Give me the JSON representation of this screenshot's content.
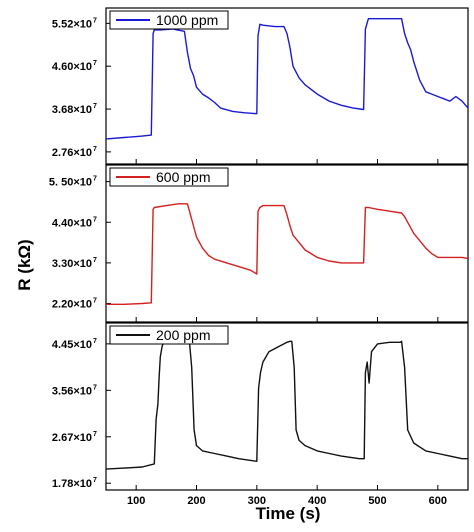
{
  "chart_data": {
    "type": "line",
    "xlabel": "Time (s)",
    "ylabel": "R (kΩ)",
    "xlim": [
      50,
      650
    ],
    "x_ticks": [
      100,
      200,
      300,
      400,
      500,
      600
    ],
    "panels": [
      {
        "legend": "1000 ppm",
        "color": "#1a1ad6",
        "ylim": [
          25000000.0,
          58500000.0
        ],
        "y_ticks": [
          27600000.0,
          36800000.0,
          46000000.0,
          55200000.0
        ],
        "y_tick_labels": [
          "2.76×10",
          "3.68×10",
          "4.60×10",
          "5.52×10"
        ],
        "y_tick_exp": "7",
        "series": [
          {
            "x": [
              50,
              80,
              110,
              125,
              128,
              130,
              140,
              160,
              180,
              185,
              190,
              195,
              200,
              210,
              220,
              230,
              240,
              260,
              280,
              300,
              302,
              305,
              310,
              330,
              345,
              350,
              355,
              360,
              370,
              380,
              400,
              420,
              440,
              460,
              477,
              480,
              485,
              500,
              520,
              540,
              545,
              550,
              555,
              560,
              570,
              580,
              590,
              600,
              610,
              620,
              630,
              640,
              650
            ],
            "y": [
              30400000.0,
              30700000.0,
              31000000.0,
              31200000.0,
              53000000.0,
              53800000.0,
              53800000.0,
              54000000.0,
              53500000.0,
              49000000.0,
              45500000.0,
              44000000.0,
              41500000.0,
              40000000.0,
              39200000.0,
              38200000.0,
              37000000.0,
              36300000.0,
              36000000.0,
              35800000.0,
              52500000.0,
              55000000.0,
              54800000.0,
              54500000.0,
              54500000.0,
              53000000.0,
              50000000.0,
              46000000.0,
              43500000.0,
              42000000.0,
              40000000.0,
              38500000.0,
              37600000.0,
              37000000.0,
              36700000.0,
              54000000.0,
              56200000.0,
              56200000.0,
              56200000.0,
              56200000.0,
              53000000.0,
              51000000.0,
              49500000.0,
              47000000.0,
              43000000.0,
              40500000.0,
              40000000.0,
              39500000.0,
              39000000.0,
              38500000.0,
              39500000.0,
              38500000.0,
              37000000.0
            ]
          }
        ]
      },
      {
        "legend": "600 ppm",
        "color": "#d42020",
        "ylim": [
          17000000.0,
          59500000.0
        ],
        "y_ticks": [
          22000000.0,
          33000000.0,
          44000000.0,
          55000000.0
        ],
        "y_tick_labels": [
          "2.20×10",
          "3.30×10",
          "4.40×10",
          "5. 50×10"
        ],
        "y_tick_exp": "7",
        "series": [
          {
            "x": [
              50,
              80,
              110,
              125,
              128,
              130,
              150,
              170,
              185,
              190,
              195,
              200,
              210,
              220,
              230,
              250,
              270,
              290,
              300,
              302,
              305,
              310,
              330,
              345,
              350,
              355,
              360,
              370,
              380,
              400,
              420,
              440,
              460,
              477,
              480,
              485,
              500,
              520,
              540,
              545,
              550,
              555,
              560,
              570,
              580,
              590,
              600,
              620,
              640,
              650
            ],
            "y": [
              21800000.0,
              21800000.0,
              22000000.0,
              22200000.0,
              47500000.0,
              48000000.0,
              48500000.0,
              49000000.0,
              49000000.0,
              46000000.0,
              43000000.0,
              40000000.0,
              37000000.0,
              35000000.0,
              34000000.0,
              33000000.0,
              32000000.0,
              31000000.0,
              30000000.0,
              47000000.0,
              48000000.0,
              48500000.0,
              48500000.0,
              48500000.0,
              46000000.0,
              43000000.0,
              40500000.0,
              38500000.0,
              36500000.0,
              34500000.0,
              33500000.0,
              33000000.0,
              33000000.0,
              33000000.0,
              48000000.0,
              48000000.0,
              47500000.0,
              47000000.0,
              46500000.0,
              45500000.0,
              44000000.0,
              42500000.0,
              41000000.0,
              39000000.0,
              37000000.0,
              35500000.0,
              34500000.0,
              34500000.0,
              34500000.0,
              34200000.0
            ]
          }
        ]
      },
      {
        "legend": "200 ppm",
        "color": "#111111",
        "ylim": [
          16500000.0,
          48500000.0
        ],
        "y_ticks": [
          17800000.0,
          26700000.0,
          35600000.0,
          44500000.0
        ],
        "y_tick_labels": [
          "1.78×10",
          "2.67×10",
          "3.56×10",
          "4.45×10"
        ],
        "y_tick_exp": "7",
        "series": [
          {
            "x": [
              50,
              80,
              110,
              130,
              133,
              136,
              138,
              140,
              143,
              146,
              150,
              165,
              180,
              188,
              192,
              196,
              200,
              210,
              230,
              250,
              270,
              300,
              303,
              306,
              310,
              320,
              340,
              350,
              355,
              358,
              362,
              365,
              370,
              380,
              400,
              420,
              440,
              470,
              478,
              480,
              483,
              486,
              490,
              500,
              520,
              535,
              538,
              540,
              545,
              550,
              560,
              580,
              600,
              620,
              640,
              650
            ],
            "y": [
              20500000.0,
              20700000.0,
              20900000.0,
              21500000.0,
              30000000.0,
              33000000.0,
              38000000.0,
              42000000.0,
              44000000.0,
              45000000.0,
              45200000.0,
              45200000.0,
              45200000.0,
              45200000.0,
              40000000.0,
              28000000.0,
              25000000.0,
              24000000.0,
              23500000.0,
              23000000.0,
              22500000.0,
              22000000.0,
              36000000.0,
              39000000.0,
              41000000.0,
              43000000.0,
              44200000.0,
              44800000.0,
              45000000.0,
              45000000.0,
              40000000.0,
              28000000.0,
              26000000.0,
              25000000.0,
              24000000.0,
              23500000.0,
              23000000.0,
              22500000.0,
              22500000.0,
              39000000.0,
              41000000.0,
              37000000.0,
              43000000.0,
              44500000.0,
              44800000.0,
              44800000.0,
              44800000.0,
              45000000.0,
              40000000.0,
              28000000.0,
              25500000.0,
              24000000.0,
              23500000.0,
              23000000.0,
              22500000.0,
              22500000.0
            ]
          }
        ]
      }
    ]
  }
}
